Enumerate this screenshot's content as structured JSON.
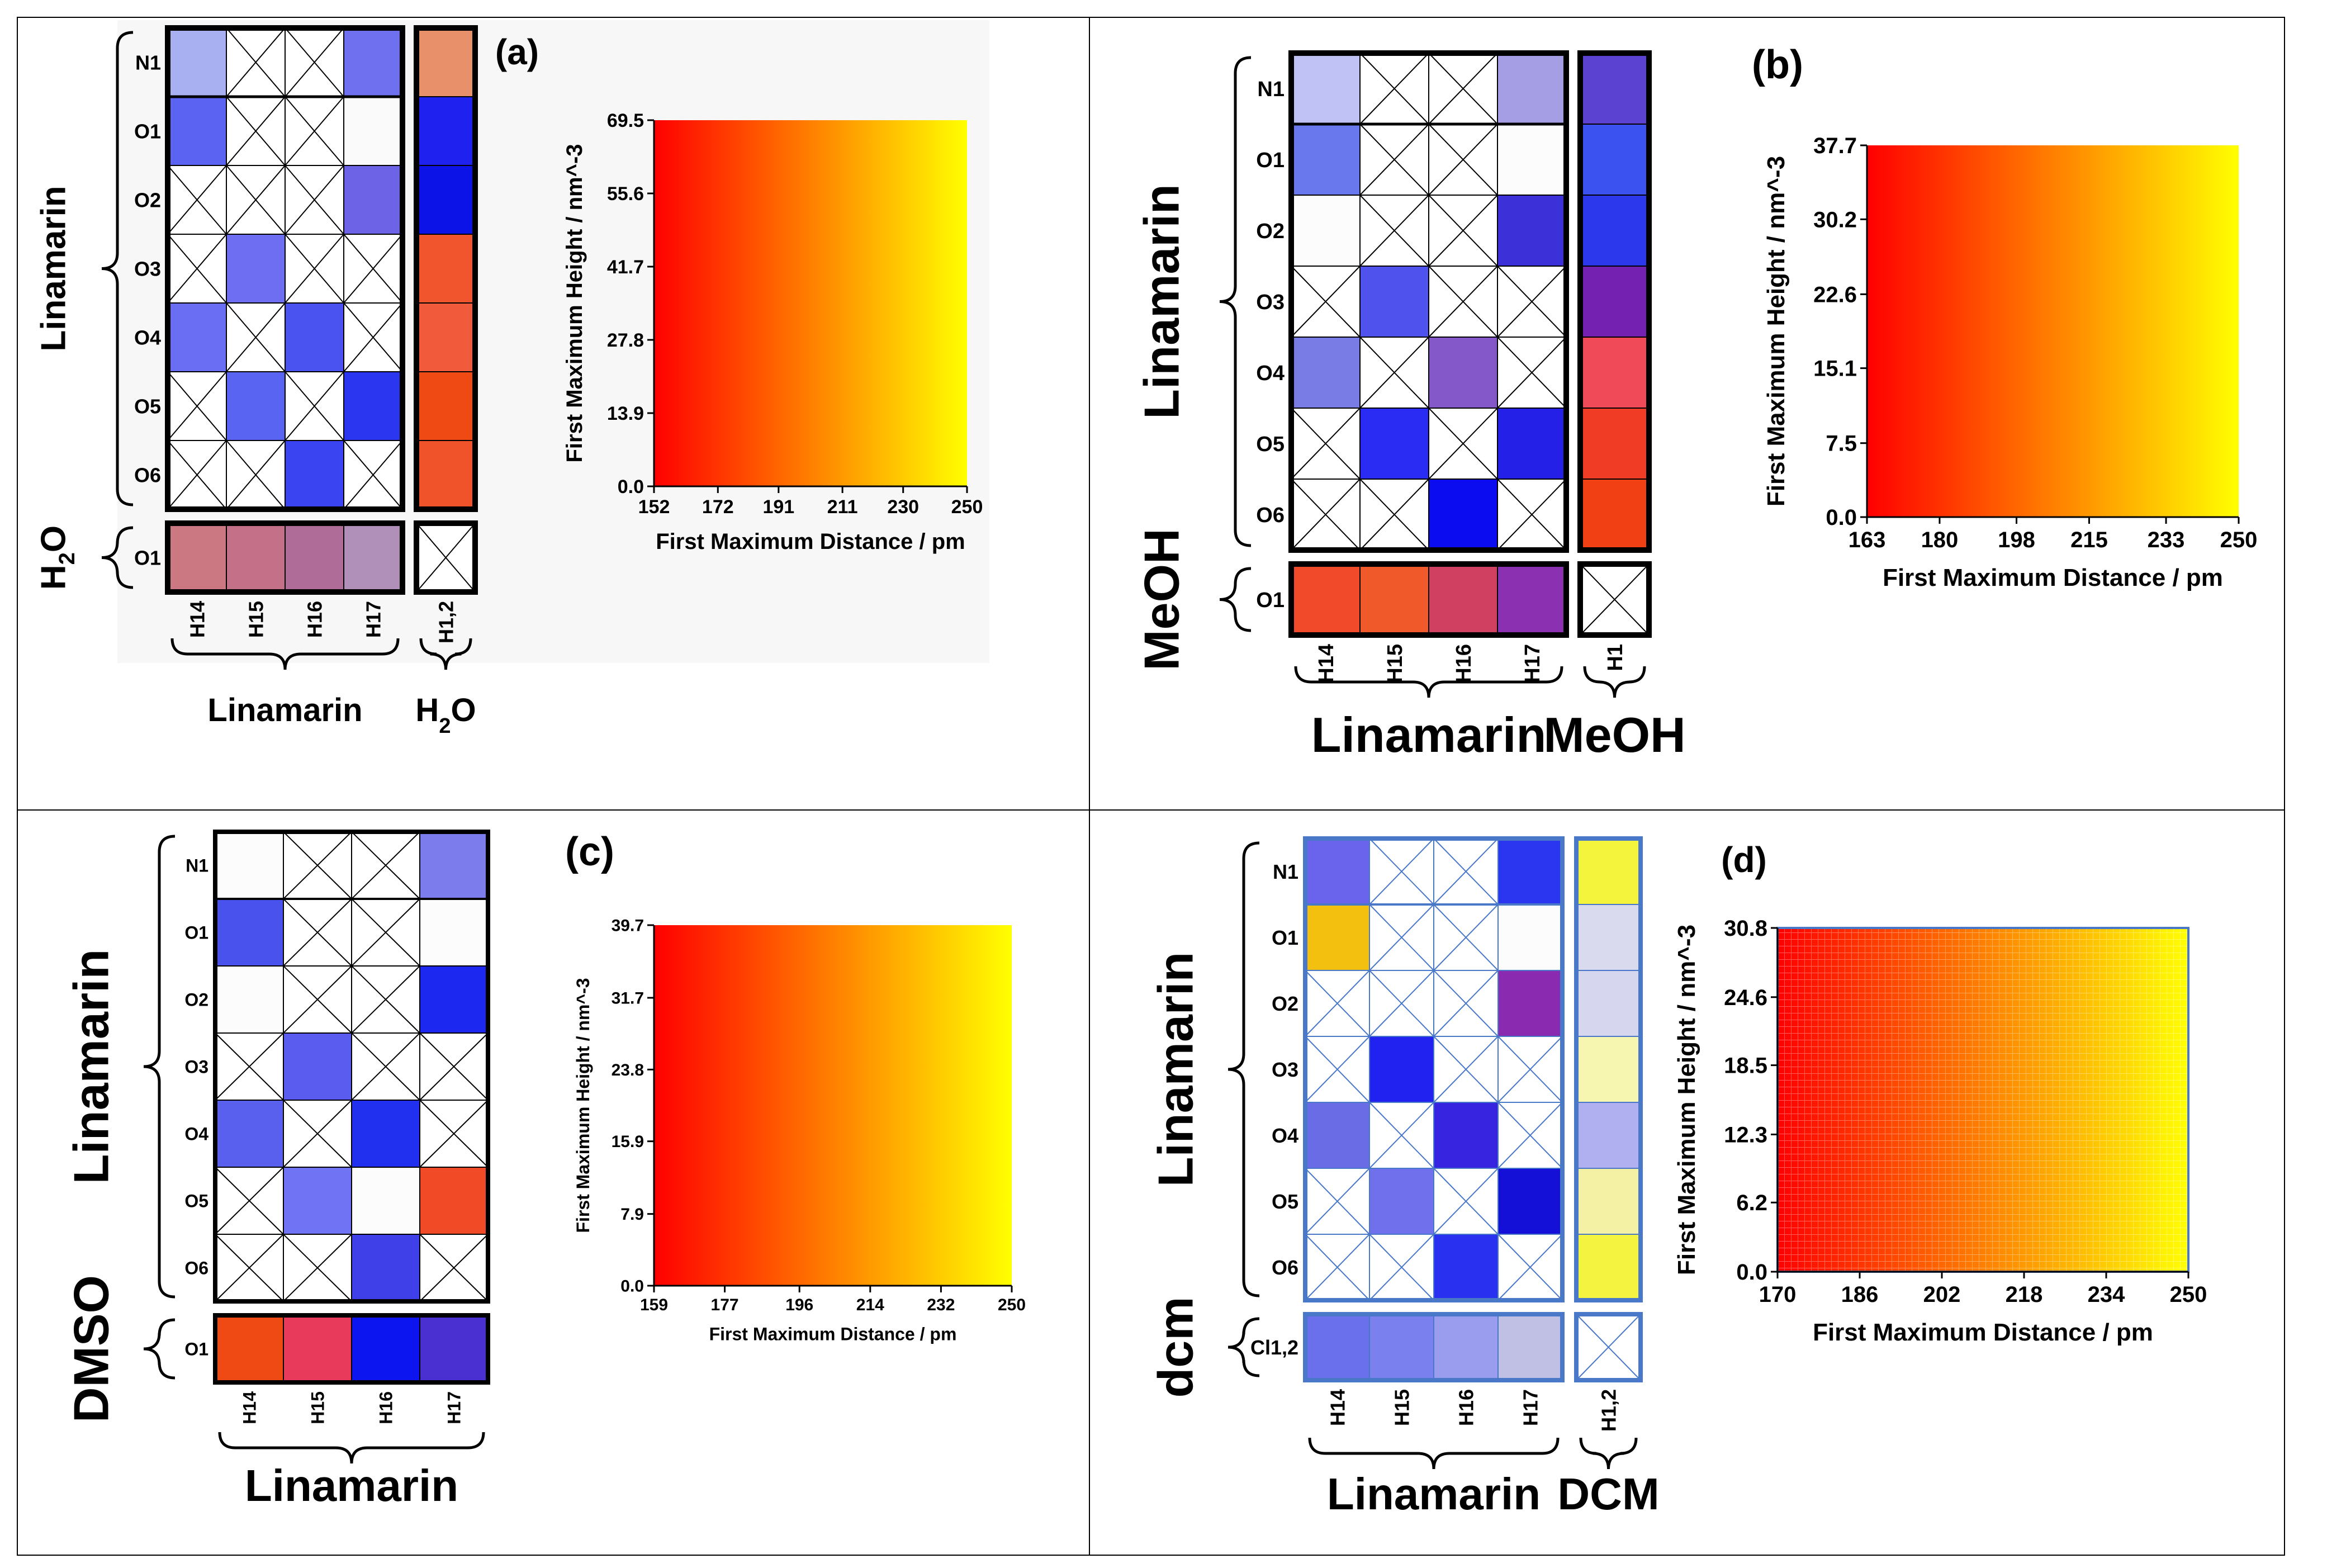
{
  "chart_data": [
    {
      "type": "heatmap",
      "panel_label": "(a)",
      "rows": [
        "N1",
        "O1",
        "O2",
        "O3",
        "O4",
        "O5",
        "O6",
        "O1"
      ],
      "row_groups": [
        {
          "label": "Linamarin",
          "rows": [
            0,
            6
          ]
        },
        {
          "label": "H",
          "sub": "2",
          "label_end": "O",
          "rows": [
            7,
            7
          ]
        }
      ],
      "columns": [
        "H14",
        "H15",
        "H16",
        "H17",
        "H1,2"
      ],
      "col_groups": [
        {
          "label": "Linamarin",
          "cols": [
            0,
            3
          ]
        },
        {
          "label": "H",
          "sub": "2",
          "label_end": "O",
          "cols": [
            4,
            4
          ]
        }
      ],
      "cells": [
        [
          "#a9b0f2",
          "x",
          "x",
          "#6e70f0",
          "#e8906a"
        ],
        [
          "#5b63f2",
          "x",
          "x",
          "#fafafa",
          "#1f22ee"
        ],
        [
          "x",
          "x",
          "x",
          "#6d63e6",
          "#0c13e6"
        ],
        [
          "x",
          "#6e6ef2",
          "x",
          "x",
          "#f0552e"
        ],
        [
          "#6a6ef2",
          "x",
          "#4a52f0",
          "x",
          "#f25a3c"
        ],
        [
          "x",
          "#5a64f2",
          "x",
          "#2a36f0",
          "#f04a14"
        ],
        [
          "x",
          "x",
          "#3a44f0",
          "x",
          "#f0522a"
        ],
        [
          "#cc7882",
          "#c47088",
          "#b06c98",
          "#b090b8",
          "x"
        ]
      ],
      "legend": {
        "title_x": "First Maximum Distance / pm",
        "title_y": "First Maximum Height / nm^-3",
        "x_ticks": [
          "152",
          "172",
          "191",
          "211",
          "230",
          "250"
        ],
        "y_ticks": [
          "0.0",
          "13.9",
          "27.8",
          "41.7",
          "55.6",
          "69.5"
        ],
        "xlim": [
          152,
          250
        ],
        "ylim": [
          0,
          69.5
        ],
        "corner_colors": {
          "top_left": "#ff0000",
          "top_right": "#ffff00",
          "bottom_left": "#0000ff",
          "bottom_right": "#ffffff"
        }
      }
    },
    {
      "type": "heatmap",
      "panel_label": "(b)",
      "rows": [
        "N1",
        "O1",
        "O2",
        "O3",
        "O4",
        "O5",
        "O6",
        "O1"
      ],
      "row_groups": [
        {
          "label": "Linamarin",
          "rows": [
            0,
            6
          ]
        },
        {
          "label": "MeOH",
          "rows": [
            7,
            7
          ]
        }
      ],
      "columns": [
        "H14",
        "H15",
        "H16",
        "H17",
        "H1"
      ],
      "col_groups": [
        {
          "label": "Linamarin",
          "cols": [
            0,
            3
          ]
        },
        {
          "label": "MeOH",
          "cols": [
            4,
            4
          ]
        }
      ],
      "cells": [
        [
          "#c0c2f6",
          "x",
          "x",
          "#a69ee4",
          "#5c42d0"
        ],
        [
          "#6a78ee",
          "x",
          "x",
          "#fcfcfc",
          "#3c52f0"
        ],
        [
          "#fcfcfc",
          "x",
          "x",
          "#3c30d8",
          "#2c38ec"
        ],
        [
          "x",
          "#5052ee",
          "x",
          "x",
          "#7420b0"
        ],
        [
          "#7a7ce6",
          "x",
          "#8458c8",
          "x",
          "#f04a58"
        ],
        [
          "x",
          "#2a2cf4",
          "x",
          "#2420e8",
          "#f03c24"
        ],
        [
          "x",
          "x",
          "#0c0cf0",
          "x",
          "#f04014"
        ],
        [
          "#f04a2a",
          "#f05a2a",
          "#d04060",
          "#8a30b0",
          "x"
        ]
      ],
      "legend": {
        "title_x": "First Maximum Distance / pm",
        "title_y": "First Maximum Height / nm^-3",
        "x_ticks": [
          "163",
          "180",
          "198",
          "215",
          "233",
          "250"
        ],
        "y_ticks": [
          "0.0",
          "7.5",
          "15.1",
          "22.6",
          "30.2",
          "37.7"
        ],
        "xlim": [
          163,
          250
        ],
        "ylim": [
          0,
          37.7
        ],
        "corner_colors": {
          "top_left": "#ff0000",
          "top_right": "#ffff00",
          "bottom_left": "#0000ff",
          "bottom_right": "#ffffff"
        }
      }
    },
    {
      "type": "heatmap",
      "panel_label": "(c)",
      "rows": [
        "N1",
        "O1",
        "O2",
        "O3",
        "O4",
        "O5",
        "O6",
        "O1"
      ],
      "row_groups": [
        {
          "label": "Linamarin",
          "rows": [
            0,
            6
          ]
        },
        {
          "label": "DMSO",
          "rows": [
            7,
            7
          ]
        }
      ],
      "columns": [
        "H14",
        "H15",
        "H16",
        "H17"
      ],
      "col_groups": [
        {
          "label": "Linamarin",
          "cols": [
            0,
            3
          ]
        }
      ],
      "cells": [
        [
          "#fcfcfc",
          "x",
          "x",
          "#7c7cec"
        ],
        [
          "#4a52ee",
          "x",
          "x",
          "#fcfcfc"
        ],
        [
          "#fcfcfc",
          "x",
          "x",
          "#1c28f0"
        ],
        [
          "x",
          "#5a5cf0",
          "x",
          "x"
        ],
        [
          "#5a60ee",
          "x",
          "#2030ee",
          "x"
        ],
        [
          "x",
          "#7074f4",
          "#fcfcfc",
          "#f04a26"
        ],
        [
          "x",
          "x",
          "#4040e8",
          "x"
        ],
        [
          "#f04a14",
          "#e83a5a",
          "#0c14f0",
          "#4a30d0"
        ]
      ],
      "legend": {
        "title_x": "First Maximum Distance / pm",
        "title_y": "First Maximum Height / nm^-3",
        "x_ticks": [
          "159",
          "177",
          "196",
          "214",
          "232",
          "250"
        ],
        "y_ticks": [
          "0.0",
          "7.9",
          "15.9",
          "23.8",
          "31.7",
          "39.7"
        ],
        "xlim": [
          159,
          250
        ],
        "ylim": [
          0,
          39.7
        ],
        "corner_colors": {
          "top_left": "#ff0000",
          "top_right": "#ffff00",
          "bottom_left": "#0000ff",
          "bottom_right": "#ffffff"
        }
      }
    },
    {
      "type": "heatmap",
      "panel_label": "(d)",
      "rows": [
        "N1",
        "O1",
        "O2",
        "O3",
        "O4",
        "O5",
        "O6",
        "Cl1,2"
      ],
      "row_groups": [
        {
          "label": "Linamarin",
          "rows": [
            0,
            6
          ]
        },
        {
          "label": "dcm",
          "rows": [
            7,
            7
          ]
        }
      ],
      "columns": [
        "H14",
        "H15",
        "H16",
        "H17",
        "H1,2"
      ],
      "col_groups": [
        {
          "label": "Linamarin",
          "cols": [
            0,
            3
          ]
        },
        {
          "label": "DCM",
          "cols": [
            4,
            4
          ]
        }
      ],
      "cells": [
        [
          "#6a64ec",
          "x",
          "x",
          "#2a36f0",
          "#f4f43c"
        ],
        [
          "#f4c010",
          "x",
          "x",
          "#fcfcfc",
          "#dadaee"
        ],
        [
          "x",
          "x",
          "x",
          "#8a2ab0",
          "#d6d6ef"
        ],
        [
          "x",
          "#2222f0",
          "x",
          "x",
          "#f6f6b0"
        ],
        [
          "#6a6ce6",
          "x",
          "#3624e0",
          "x",
          "#b0b0f0"
        ],
        [
          "x",
          "#7070ec",
          "x",
          "#1410d8",
          "#f4f0a4"
        ],
        [
          "x",
          "x",
          "#2a30f0",
          "x",
          "#f4f440"
        ],
        [
          "#6a70ec",
          "#7a80ee",
          "#9a9cee",
          "#c0c0e4",
          "x"
        ]
      ],
      "legend": {
        "title_x": "First Maximum Distance / pm",
        "title_y": "First Maximum Height / nm^-3",
        "x_ticks": [
          "170",
          "186",
          "202",
          "218",
          "234",
          "250"
        ],
        "y_ticks": [
          "0.0",
          "6.2",
          "12.3",
          "18.5",
          "24.6",
          "30.8"
        ],
        "xlim": [
          170,
          250
        ],
        "ylim": [
          0,
          30.8
        ],
        "corner_colors": {
          "top_left": "#ff0000",
          "top_right": "#ffff00",
          "bottom_left": "#0000ff",
          "bottom_right": "#ffffff"
        }
      }
    }
  ]
}
